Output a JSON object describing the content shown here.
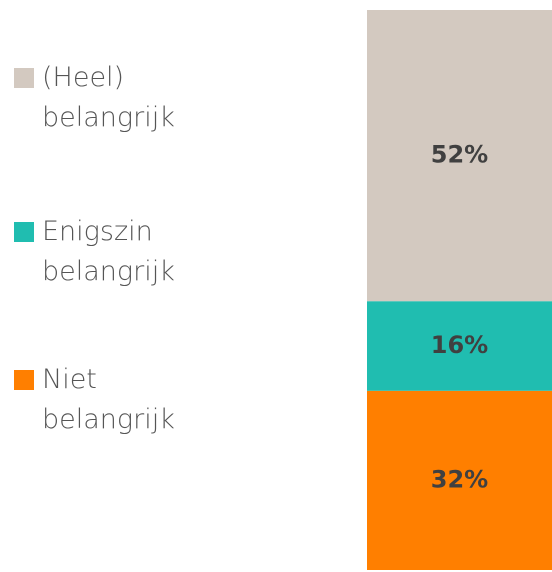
{
  "chart_data": {
    "type": "bar",
    "stacked": true,
    "categories": [
      null
    ],
    "series": [
      {
        "name": "(Heel) belangrijk",
        "color": "#d3c9c0",
        "values": [
          52
        ],
        "value_labels": [
          "52%"
        ]
      },
      {
        "name": "Enigszin belangrijk",
        "color": "#20bdb0",
        "values": [
          16
        ],
        "value_labels": [
          "16%"
        ]
      },
      {
        "name": "Niet belangrijk",
        "color": "#ff7f00",
        "values": [
          32
        ],
        "value_labels": [
          "32%"
        ]
      }
    ],
    "ylim": [
      0,
      100
    ],
    "legend": "left"
  }
}
